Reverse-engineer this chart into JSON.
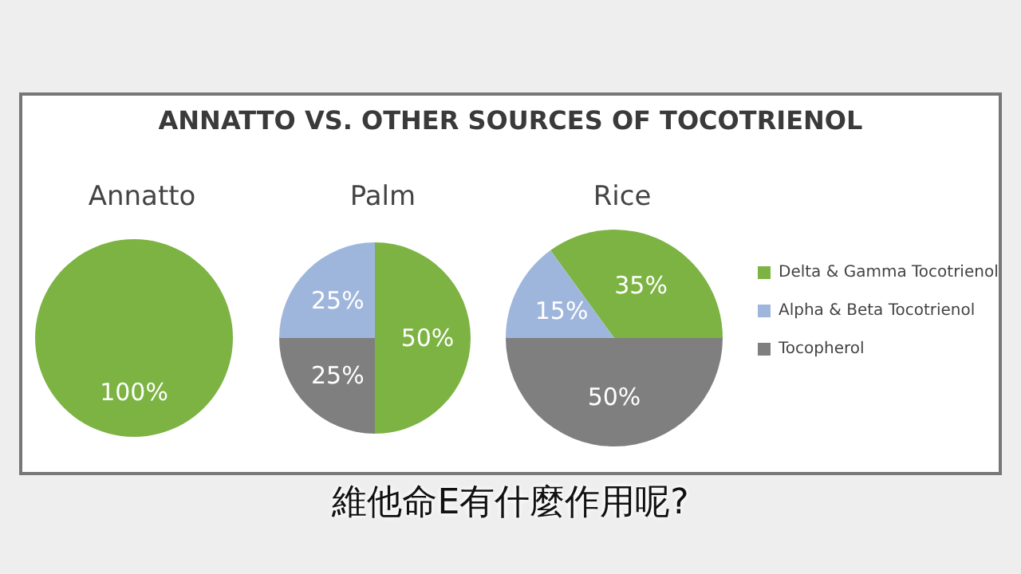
{
  "chart_data": [
    {
      "type": "pie",
      "title": "Annatto",
      "categories": [
        null
      ],
      "values": [
        100
      ],
      "colors": [
        "#7cb342"
      ],
      "value_labels": [
        "100%"
      ],
      "annotations": [
        "ANNATTO VS. OTHER SOURCES OF TOCOTRIENOL",
        "維他命E有什麼作用呢?"
      ]
    },
    {
      "type": "pie",
      "title": "Palm",
      "categories": [
        null,
        null,
        null
      ],
      "values": [
        50,
        25,
        25
      ],
      "colors": [
        "#7cb342",
        "#9fb6dc",
        "#7f7f7f"
      ],
      "value_labels": [
        "50%",
        "25%",
        "25%"
      ]
    },
    {
      "type": "pie",
      "title": "Rice",
      "categories": [
        "Delta & Gamma Tocotrienol",
        "Alpha & Beta Tocotrienol",
        "Tocopherol"
      ],
      "values": [
        35,
        15,
        50
      ],
      "colors": [
        "#7cb342",
        "#9fb6dc",
        "#7f7f7f"
      ],
      "value_labels": [
        "35%",
        "15%",
        "50%"
      ],
      "legend": "right"
    }
  ]
}
